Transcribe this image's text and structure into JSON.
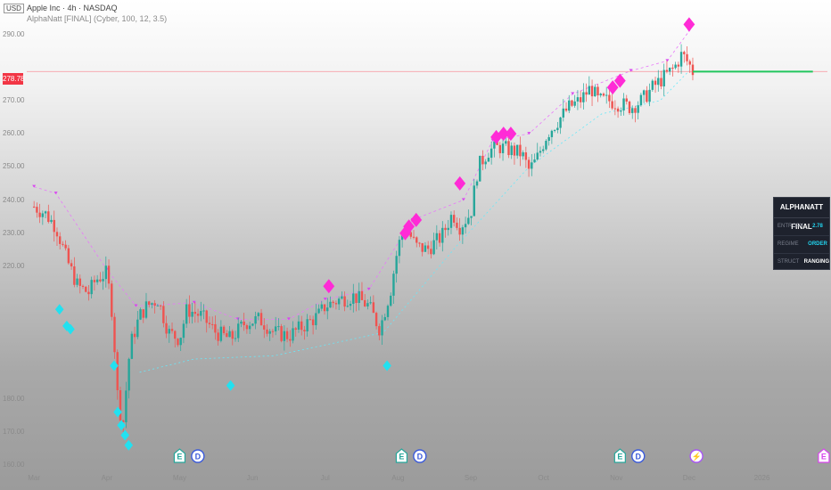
{
  "header": {
    "currency": "USD",
    "symbol_line": "Apple Inc · 4h · NASDAQ",
    "indicator_line": "AlphaNatt [FINAL] (Cyber, 100, 12, 3.5)"
  },
  "price_tag": "278.78",
  "panel": {
    "title": "ALPHANATT FINAL",
    "rows": [
      {
        "label": "ENTROPY",
        "value": "2.78",
        "color": "#22d3ee"
      },
      {
        "label": "REGIME",
        "value": "ORDER",
        "color": "#22d3ee"
      },
      {
        "label": "STRUCT",
        "value": "RANGING",
        "color": "#ffffff"
      }
    ]
  },
  "chart_data": {
    "type": "candlestick",
    "title": "",
    "ylim": [
      160,
      295
    ],
    "y_ticks": [
      {
        "label": "290.00",
        "value": 290
      },
      {
        "label": "270.00",
        "value": 270
      },
      {
        "label": "260.00",
        "value": 260
      },
      {
        "label": "250.00",
        "value": 250
      },
      {
        "label": "240.00",
        "value": 240
      },
      {
        "label": "230.00",
        "value": 230
      },
      {
        "label": "220.00",
        "value": 220
      },
      {
        "label": "180.00",
        "value": 180
      },
      {
        "label": "170.00",
        "value": 170
      },
      {
        "label": "160.00",
        "value": 160
      }
    ],
    "x_ticks": [
      {
        "label": "Mar",
        "t": 0.0
      },
      {
        "label": "Apr",
        "t": 1.0
      },
      {
        "label": "May",
        "t": 2.0
      },
      {
        "label": "Jun",
        "t": 3.0
      },
      {
        "label": "Jul",
        "t": 4.0
      },
      {
        "label": "Aug",
        "t": 5.0
      },
      {
        "label": "Sep",
        "t": 6.0
      },
      {
        "label": "Oct",
        "t": 7.0
      },
      {
        "label": "Nov",
        "t": 8.0
      },
      {
        "label": "Dec",
        "t": 9.0
      },
      {
        "label": "2026",
        "t": 10.0
      }
    ],
    "xlim": [
      -0.1,
      10.9
    ],
    "price_path": [
      [
        0.0,
        238
      ],
      [
        0.15,
        236
      ],
      [
        0.3,
        232
      ],
      [
        0.45,
        222
      ],
      [
        0.6,
        214
      ],
      [
        0.75,
        212
      ],
      [
        0.85,
        216
      ],
      [
        1.0,
        218
      ],
      [
        1.08,
        205
      ],
      [
        1.15,
        180
      ],
      [
        1.22,
        172
      ],
      [
        1.32,
        196
      ],
      [
        1.45,
        205
      ],
      [
        1.55,
        208
      ],
      [
        1.7,
        210
      ],
      [
        1.85,
        200
      ],
      [
        2.0,
        198
      ],
      [
        2.1,
        207
      ],
      [
        2.3,
        205
      ],
      [
        2.5,
        200
      ],
      [
        2.7,
        198
      ],
      [
        2.9,
        203
      ],
      [
        3.1,
        204
      ],
      [
        3.3,
        200
      ],
      [
        3.5,
        199
      ],
      [
        3.7,
        202
      ],
      [
        3.9,
        205
      ],
      [
        4.0,
        208
      ],
      [
        4.2,
        210
      ],
      [
        4.4,
        211
      ],
      [
        4.6,
        208
      ],
      [
        4.75,
        201
      ],
      [
        4.9,
        213
      ],
      [
        5.0,
        226
      ],
      [
        5.1,
        232
      ],
      [
        5.25,
        226
      ],
      [
        5.4,
        225
      ],
      [
        5.6,
        229
      ],
      [
        5.75,
        236
      ],
      [
        5.85,
        232
      ],
      [
        6.0,
        236
      ],
      [
        6.1,
        250
      ],
      [
        6.25,
        255
      ],
      [
        6.4,
        256
      ],
      [
        6.55,
        255
      ],
      [
        6.7,
        254
      ],
      [
        6.8,
        249
      ],
      [
        6.9,
        252
      ],
      [
        7.05,
        260
      ],
      [
        7.2,
        264
      ],
      [
        7.35,
        268
      ],
      [
        7.5,
        270
      ],
      [
        7.65,
        274
      ],
      [
        7.75,
        270
      ],
      [
        7.9,
        270
      ],
      [
        8.05,
        269
      ],
      [
        8.2,
        268
      ],
      [
        8.35,
        270
      ],
      [
        8.5,
        274
      ],
      [
        8.65,
        277
      ],
      [
        8.8,
        280
      ],
      [
        8.9,
        284
      ],
      [
        9.0,
        281
      ],
      [
        9.05,
        278.78
      ]
    ],
    "flat_line": {
      "value": 278.78,
      "from": 9.05,
      "to": 10.7,
      "color": "#22c55e"
    },
    "upper_line": [
      [
        0.0,
        244
      ],
      [
        0.3,
        242
      ],
      [
        1.0,
        219
      ],
      [
        1.4,
        208
      ],
      [
        2.2,
        209
      ],
      [
        2.8,
        204
      ],
      [
        3.5,
        204
      ],
      [
        4.0,
        210
      ],
      [
        4.6,
        213
      ],
      [
        5.2,
        234
      ],
      [
        5.9,
        240
      ],
      [
        6.3,
        258
      ],
      [
        6.8,
        260
      ],
      [
        7.4,
        272
      ],
      [
        8.2,
        279
      ],
      [
        8.7,
        282
      ],
      [
        9.0,
        291
      ]
    ],
    "lower_line": [
      [
        1.45,
        188
      ],
      [
        2.2,
        192
      ],
      [
        3.3,
        193
      ],
      [
        4.8,
        200
      ],
      [
        5.8,
        226
      ],
      [
        6.8,
        250
      ],
      [
        7.8,
        266
      ],
      [
        8.6,
        270
      ],
      [
        9.0,
        279
      ]
    ],
    "cyan_markers": [
      [
        0.35,
        207
      ],
      [
        0.45,
        202
      ],
      [
        0.5,
        201
      ],
      [
        1.1,
        190
      ],
      [
        1.15,
        176
      ],
      [
        1.2,
        172
      ],
      [
        1.25,
        169
      ],
      [
        1.3,
        166
      ],
      [
        2.7,
        184
      ],
      [
        4.85,
        190
      ]
    ],
    "magenta_markers": [
      [
        4.05,
        214
      ],
      [
        5.1,
        230
      ],
      [
        5.15,
        232
      ],
      [
        5.25,
        234
      ],
      [
        5.85,
        245
      ],
      [
        6.35,
        259
      ],
      [
        6.45,
        260
      ],
      [
        6.55,
        260
      ],
      [
        7.95,
        274
      ],
      [
        8.05,
        276
      ],
      [
        9.0,
        293
      ]
    ],
    "event_icons": [
      {
        "t": 2.0,
        "glyph": "E",
        "kind": "earnings"
      },
      {
        "t": 2.25,
        "glyph": "D",
        "kind": "dividend"
      },
      {
        "t": 5.05,
        "glyph": "E",
        "kind": "earnings"
      },
      {
        "t": 5.3,
        "glyph": "D",
        "kind": "dividend"
      },
      {
        "t": 8.05,
        "glyph": "E",
        "kind": "earnings"
      },
      {
        "t": 8.3,
        "glyph": "D",
        "kind": "dividend"
      },
      {
        "t": 9.1,
        "glyph": "⚡",
        "kind": "split"
      },
      {
        "t": 10.85,
        "glyph": "E",
        "kind": "earnings"
      }
    ]
  }
}
